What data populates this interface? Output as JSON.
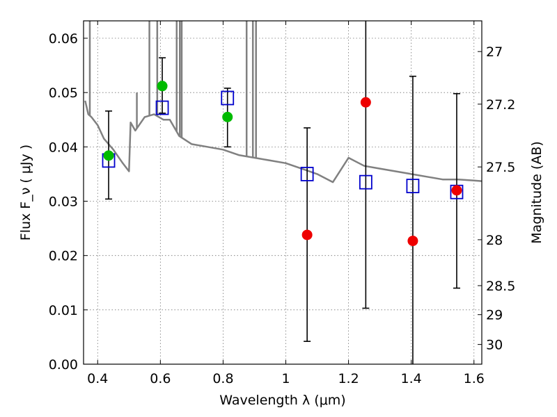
{
  "chart_data": {
    "type": "scatter",
    "xlabel": "Wavelength  λ (μm)",
    "ylabel": "Flux  F_ν  ( μJy )",
    "ylabel_right": "Magnitude (AB)",
    "xlim": [
      0.355,
      1.625
    ],
    "ylim": [
      0.0,
      0.0632
    ],
    "grid": true,
    "x_ticks": [
      0.4,
      0.6,
      0.8,
      1.0,
      1.2,
      1.4,
      1.6
    ],
    "x_tick_labels": [
      "0.4",
      "0.6",
      "0.8",
      "1",
      "1.2",
      "1.4",
      "1.6"
    ],
    "y_ticks": [
      0.0,
      0.01,
      0.02,
      0.03,
      0.04,
      0.05,
      0.06
    ],
    "y_tick_labels": [
      "0.00",
      "0.01",
      "0.02",
      "0.03",
      "0.04",
      "0.05",
      "0.06"
    ],
    "mag_ticks": [
      27,
      27.2,
      27.5,
      28,
      28.5,
      29,
      30
    ],
    "mag_tick_labels": [
      "27",
      "27.2",
      "27.5",
      "28",
      "28.5",
      "29",
      "30"
    ],
    "colors": {
      "model": "#808080",
      "errorbar": "#000000",
      "squares": "#0000cc",
      "green": "#00bb00",
      "red": "#ee0000"
    },
    "model_spectrum": {
      "x": [
        0.36,
        0.37,
        0.38,
        0.4,
        0.42,
        0.45,
        0.48,
        0.5,
        0.505,
        0.52,
        0.55,
        0.58,
        0.61,
        0.63,
        0.66,
        0.7,
        0.75,
        0.8,
        0.85,
        0.9,
        0.95,
        1.0,
        1.05,
        1.1,
        1.15,
        1.2,
        1.25,
        1.3,
        1.35,
        1.4,
        1.45,
        1.5,
        1.55,
        1.6,
        1.625
      ],
      "y": [
        0.0485,
        0.046,
        0.0455,
        0.044,
        0.0415,
        0.0395,
        0.037,
        0.0355,
        0.0445,
        0.043,
        0.0455,
        0.046,
        0.045,
        0.045,
        0.042,
        0.0405,
        0.04,
        0.0395,
        0.0385,
        0.038,
        0.0375,
        0.037,
        0.036,
        0.035,
        0.0335,
        0.038,
        0.0365,
        0.036,
        0.0355,
        0.035,
        0.0345,
        0.034,
        0.034,
        0.0338,
        0.0337
      ],
      "spikes": [
        {
          "x": 0.375,
          "y": 0.0632
        },
        {
          "x": 0.525,
          "y": 0.05
        },
        {
          "x": 0.565,
          "y": 0.0632
        },
        {
          "x": 0.59,
          "y": 0.0632
        },
        {
          "x": 0.652,
          "y": 0.0632
        },
        {
          "x": 0.662,
          "y": 0.0632
        },
        {
          "x": 0.668,
          "y": 0.0632
        },
        {
          "x": 0.875,
          "y": 0.0632
        },
        {
          "x": 0.895,
          "y": 0.0632
        },
        {
          "x": 0.905,
          "y": 0.0632
        }
      ]
    },
    "series": [
      {
        "marker": "square-open",
        "points": [
          {
            "x": 0.435,
            "y": 0.0375
          },
          {
            "x": 0.606,
            "y": 0.0472
          },
          {
            "x": 0.814,
            "y": 0.049
          },
          {
            "x": 1.068,
            "y": 0.035
          },
          {
            "x": 1.255,
            "y": 0.0335
          },
          {
            "x": 1.405,
            "y": 0.0328
          },
          {
            "x": 1.545,
            "y": 0.0317
          }
        ]
      },
      {
        "marker": "circle-filled-green",
        "points": [
          {
            "x": 0.435,
            "y": 0.0384,
            "err_low": 0.0304,
            "err_high": 0.0466
          },
          {
            "x": 0.606,
            "y": 0.0512,
            "err_low": 0.0462,
            "err_high": 0.0564
          },
          {
            "x": 0.814,
            "y": 0.0455,
            "err_low": 0.04,
            "err_high": 0.0508
          }
        ]
      },
      {
        "marker": "circle-filled-red",
        "points": [
          {
            "x": 1.068,
            "y": 0.0238,
            "err_low": 0.0042,
            "err_high": 0.0435
          },
          {
            "x": 1.255,
            "y": 0.0482,
            "err_low": 0.0103,
            "err_high": 0.0632
          },
          {
            "x": 1.405,
            "y": 0.0227,
            "err_low": 0.0,
            "err_high": 0.053
          },
          {
            "x": 1.545,
            "y": 0.032,
            "err_low": 0.014,
            "err_high": 0.0498
          }
        ]
      }
    ]
  }
}
